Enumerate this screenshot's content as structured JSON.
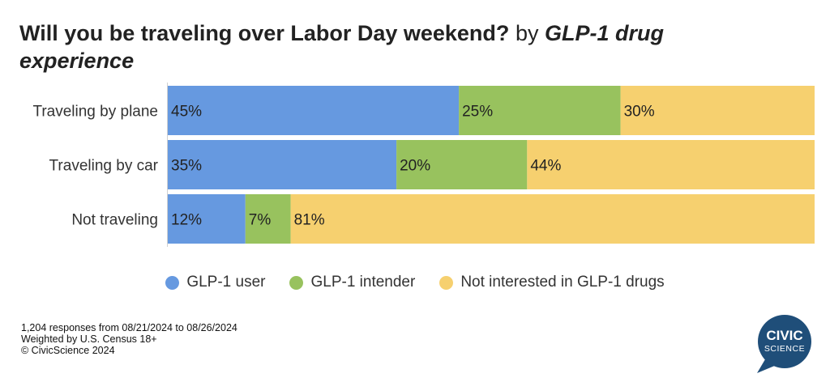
{
  "title": {
    "main": "Will you be traveling over Labor Day weekend?",
    "by": "by",
    "group": "GLP-1 drug experience"
  },
  "chart_data": {
    "type": "bar",
    "orientation": "horizontal",
    "stacked": true,
    "title": "Will you be traveling over Labor Day weekend? by GLP-1 drug experience",
    "categories": [
      "Traveling by plane",
      "Traveling by car",
      "Not traveling"
    ],
    "series": [
      {
        "name": "GLP-1 user",
        "values": [
          45,
          35,
          12
        ],
        "labels": [
          "45%",
          "35%",
          "12%"
        ],
        "color": "#6699e0"
      },
      {
        "name": "GLP-1 intender",
        "values": [
          25,
          20,
          7
        ],
        "labels": [
          "25%",
          "20%",
          "7%"
        ],
        "color": "#98c25e"
      },
      {
        "name": "Not interested in GLP-1 drugs",
        "values": [
          30,
          44,
          81
        ],
        "labels": [
          "30%",
          "44%",
          "81%"
        ],
        "color": "#f6d06f"
      }
    ],
    "legend_position": "bottom",
    "grid": false
  },
  "footnotes": [
    "1,204 responses from 08/21/2024 to 08/26/2024",
    "Weighted by U.S. Census 18+",
    "© CivicScience 2024"
  ],
  "logo": {
    "line1": "CIVIC",
    "line2": "SCIENCE",
    "color": "#1f4e79"
  }
}
